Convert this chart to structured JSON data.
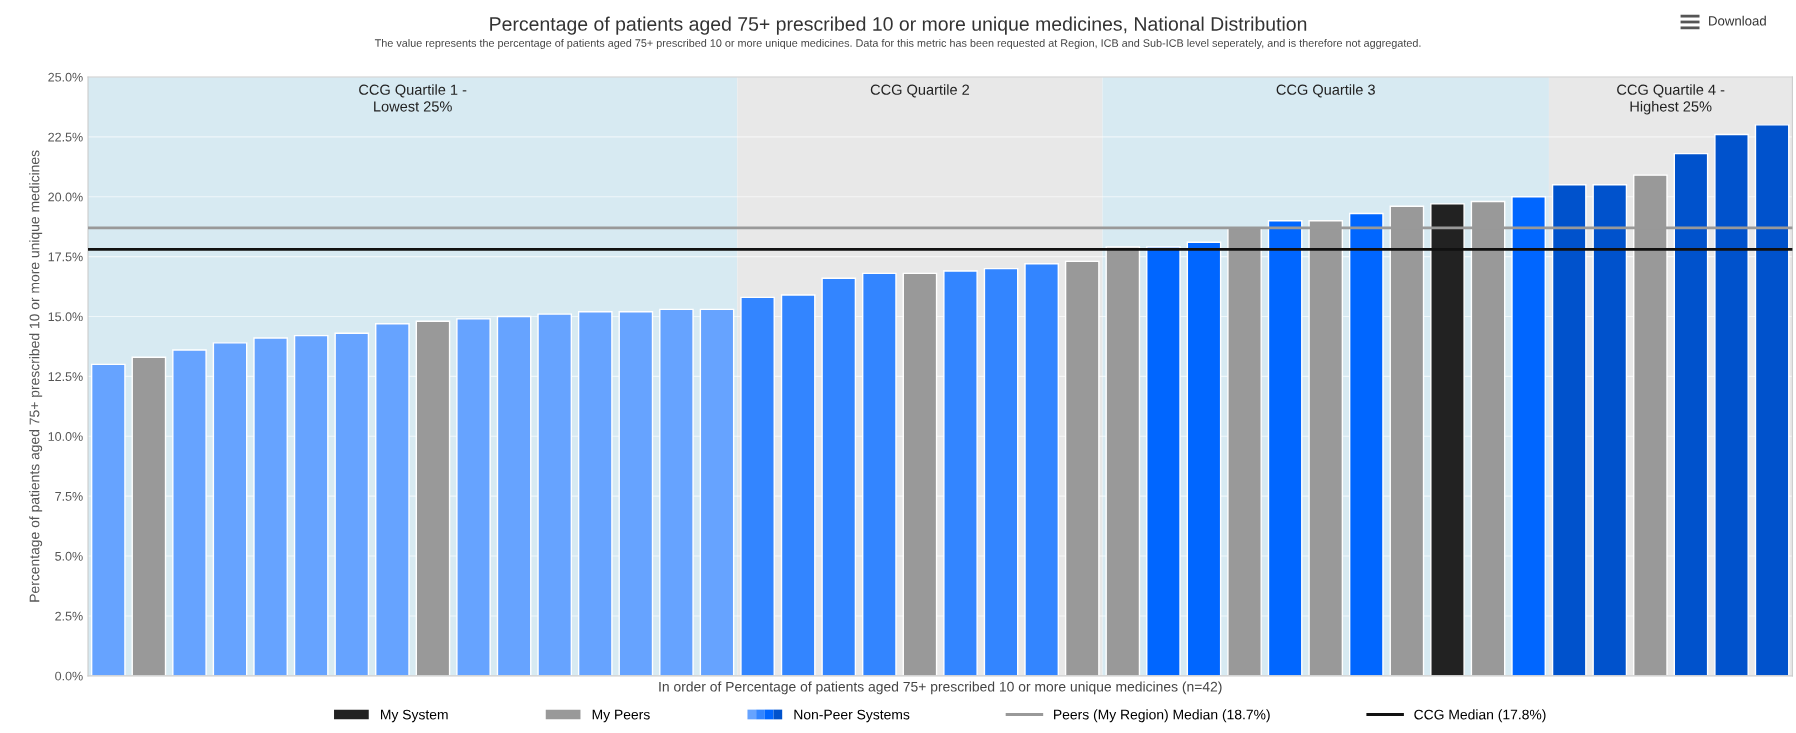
{
  "chart_data": {
    "type": "bar",
    "title": "Percentage of patients aged 75+ prescribed 10 or more unique medicines, National Distribution",
    "subtitle": "The value represents the percentage of patients aged 75+ prescribed 10 or more unique medicines. Data for this metric has been requested at Region, ICB and Sub-ICB level seperately, and is therefore not aggregated.",
    "xlabel": "In order of Percentage of patients aged 75+ prescribed 10 or more unique medicines (n=42)",
    "ylabel": "Percentage of patients aged 75+ prescribed 10 or more unique medicines",
    "annotations": [
      "Download",
      "CCG Quartile 1 -\nLowest 25%",
      "CCG Quartile 2",
      "CCG Quartile 3",
      "CCG Quartile 4 -\nHighest 25%"
    ],
    "categories": [
      null,
      null,
      null,
      null,
      null,
      null,
      null,
      null,
      null,
      null,
      null,
      null,
      null,
      null,
      null,
      null,
      null,
      null,
      null,
      null,
      null,
      null,
      null,
      null,
      null,
      null,
      null,
      null,
      null,
      null,
      null,
      null,
      null,
      null,
      null,
      null,
      null,
      null,
      null,
      null,
      null,
      null
    ],
    "series": [
      {
        "name": "My System",
        "color": "#222222",
        "values": [
          null,
          null,
          null,
          null,
          null,
          null,
          null,
          null,
          null,
          null,
          null,
          null,
          null,
          null,
          null,
          null,
          null,
          null,
          null,
          null,
          null,
          null,
          null,
          null,
          null,
          null,
          null,
          null,
          null,
          null,
          null,
          null,
          null,
          19.7,
          null,
          null,
          null,
          null,
          null,
          null,
          null,
          null
        ]
      },
      {
        "name": "My Peers",
        "color": "#999999",
        "values": [
          null,
          13.3,
          null,
          null,
          null,
          null,
          null,
          null,
          14.8,
          null,
          null,
          null,
          null,
          null,
          null,
          null,
          null,
          null,
          null,
          null,
          16.8,
          null,
          null,
          null,
          17.3,
          17.9,
          null,
          null,
          18.7,
          null,
          19.0,
          null,
          19.6,
          null,
          19.8,
          null,
          null,
          null,
          20.9,
          null,
          null,
          null
        ]
      },
      {
        "name": "Non-Peer Systems",
        "values": [
          13.0,
          null,
          13.6,
          13.9,
          14.1,
          14.2,
          14.3,
          14.7,
          null,
          14.9,
          15.0,
          15.1,
          15.2,
          15.2,
          15.3,
          15.3,
          15.8,
          15.9,
          16.6,
          16.8,
          null,
          16.9,
          17.0,
          17.2,
          null,
          null,
          17.9,
          18.1,
          null,
          19.0,
          null,
          19.3,
          null,
          null,
          null,
          20.0,
          20.5,
          20.5,
          null,
          21.8,
          22.6,
          23.0
        ],
        "colors": [
          "#66a3ff",
          null,
          "#66a3ff",
          "#66a3ff",
          "#66a3ff",
          "#66a3ff",
          "#66a3ff",
          "#66a3ff",
          null,
          "#66a3ff",
          "#66a3ff",
          "#66a3ff",
          "#66a3ff",
          "#66a3ff",
          "#66a3ff",
          "#66a3ff",
          "#3385ff",
          "#3385ff",
          "#3385ff",
          "#3385ff",
          null,
          "#3385ff",
          "#3385ff",
          "#3385ff",
          null,
          null,
          "#0066ff",
          "#0066ff",
          null,
          "#0066ff",
          null,
          "#0066ff",
          null,
          null,
          null,
          "#0066ff",
          "#0052cc",
          "#0052cc",
          null,
          "#0052cc",
          "#0052cc",
          "#0052cc"
        ]
      }
    ],
    "ylim": [
      0,
      25
    ],
    "yticks": [
      {
        "value": 0,
        "label": "0.0%"
      },
      {
        "value": 2.5,
        "label": "2.5%"
      },
      {
        "value": 5,
        "label": "5.0%"
      },
      {
        "value": 7.5,
        "label": "7.5%"
      },
      {
        "value": 10,
        "label": "10.0%"
      },
      {
        "value": 12.5,
        "label": "12.5%"
      },
      {
        "value": 15,
        "label": "15.0%"
      },
      {
        "value": 17.5,
        "label": "17.5%"
      },
      {
        "value": 20,
        "label": "20.0%"
      },
      {
        "value": 22.5,
        "label": "22.5%"
      },
      {
        "value": 25,
        "label": "25.0%"
      }
    ],
    "ref_lines": [
      {
        "axis": "y",
        "value": 18.7,
        "label": "Peers (My Region) Median (18.7%)",
        "color": "#999999"
      },
      {
        "axis": "y",
        "value": 17.8,
        "label": "CCG Median (17.8%)",
        "color": "#111111"
      }
    ],
    "grid": "y",
    "legend": "bottom"
  }
}
